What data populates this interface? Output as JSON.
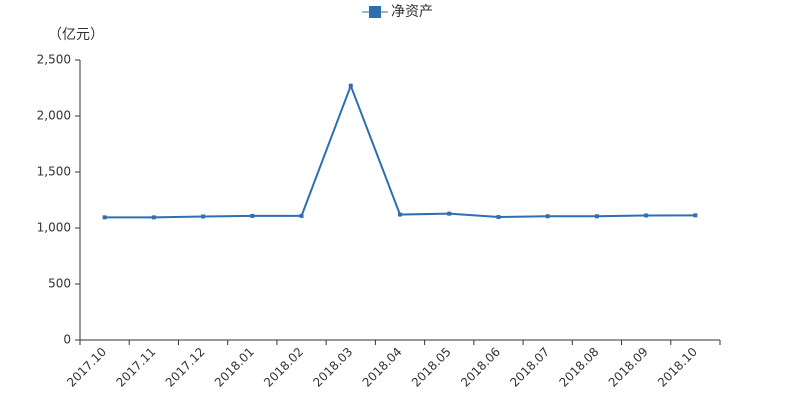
{
  "chart_data": {
    "type": "line",
    "y_label": "（亿元）",
    "categories": [
      "2017.10",
      "2017.11",
      "2017.12",
      "2018.01",
      "2018.02",
      "2018.03",
      "2018.04",
      "2018.05",
      "2018.06",
      "2018.07",
      "2018.08",
      "2018.09",
      "2018.10"
    ],
    "series": [
      {
        "name": "净资产",
        "color": "#2e6faf",
        "values": [
          1095,
          1095,
          1103,
          1108,
          1108,
          2270,
          1120,
          1128,
          1098,
          1105,
          1105,
          1112,
          1113
        ]
      }
    ],
    "ylim": [
      0,
      2500
    ],
    "yticks": [
      0,
      500,
      {
        "value": 1000,
        "label": "1,000"
      },
      {
        "value": 1500,
        "label": "1,500"
      },
      {
        "value": 2000,
        "label": "2,000"
      },
      {
        "value": 2500,
        "label": "2,500"
      }
    ]
  }
}
